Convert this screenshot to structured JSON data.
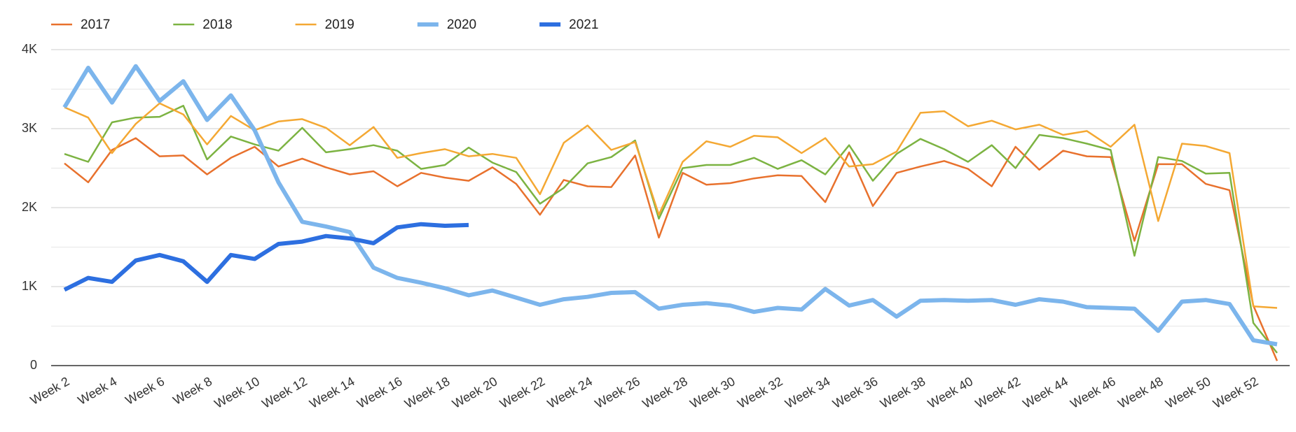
{
  "chart_data": {
    "type": "line",
    "categories": [
      "Week 2",
      null,
      "Week 4",
      null,
      "Week 6",
      null,
      "Week 8",
      null,
      "Week 10",
      null,
      "Week 12",
      null,
      "Week 14",
      null,
      "Week 16",
      null,
      "Week 18",
      null,
      "Week 20",
      null,
      "Week 22",
      null,
      "Week 24",
      null,
      "Week 26",
      null,
      "Week 28",
      null,
      "Week 30",
      null,
      "Week 32",
      null,
      "Week 34",
      null,
      "Week 36",
      null,
      "Week 38",
      null,
      "Week 40",
      null,
      "Week 42",
      null,
      "Week 44",
      null,
      "Week 46",
      null,
      "Week 48",
      null,
      "Week 50",
      null,
      "Week 52",
      null
    ],
    "series": [
      {
        "name": "2017",
        "color": "#e8712d",
        "line_width": 2.5,
        "values": [
          2560,
          2320,
          2730,
          2880,
          2650,
          2660,
          2420,
          2630,
          2770,
          2520,
          2620,
          2510,
          2420,
          2460,
          2270,
          2440,
          2380,
          2340,
          2510,
          2300,
          1910,
          2350,
          2270,
          2260,
          2660,
          1620,
          2440,
          2290,
          2310,
          2370,
          2410,
          2400,
          2070,
          2700,
          2020,
          2440,
          2520,
          2590,
          2490,
          2270,
          2770,
          2480,
          2720,
          2650,
          2640,
          1580,
          2550,
          2550,
          2300,
          2220,
          760,
          60
        ]
      },
      {
        "name": "2018",
        "color": "#7cb342",
        "line_width": 2.5,
        "values": [
          2680,
          2580,
          3080,
          3140,
          3150,
          3290,
          2610,
          2900,
          2800,
          2720,
          3010,
          2700,
          2740,
          2790,
          2720,
          2490,
          2540,
          2760,
          2570,
          2450,
          2050,
          2250,
          2560,
          2640,
          2850,
          1860,
          2500,
          2540,
          2540,
          2630,
          2490,
          2600,
          2420,
          2790,
          2340,
          2680,
          2870,
          2740,
          2580,
          2790,
          2500,
          2920,
          2880,
          2810,
          2730,
          1390,
          2640,
          2590,
          2430,
          2440,
          540,
          160
        ]
      },
      {
        "name": "2019",
        "color": "#f4a833",
        "line_width": 2.5,
        "values": [
          3270,
          3140,
          2690,
          3060,
          3320,
          3180,
          2800,
          3160,
          2980,
          3090,
          3120,
          3010,
          2790,
          3020,
          2630,
          2690,
          2740,
          2650,
          2680,
          2630,
          2170,
          2820,
          3040,
          2730,
          2830,
          1910,
          2580,
          2840,
          2770,
          2910,
          2890,
          2690,
          2880,
          2520,
          2550,
          2710,
          3200,
          3220,
          3030,
          3100,
          2990,
          3050,
          2920,
          2970,
          2770,
          3050,
          1830,
          2810,
          2780,
          2690,
          750,
          730
        ]
      },
      {
        "name": "2020",
        "color": "#7cb5ec",
        "line_width": 6,
        "values": [
          3270,
          3770,
          3330,
          3790,
          3350,
          3600,
          3110,
          3420,
          2980,
          2320,
          1820,
          1760,
          1690,
          1240,
          1110,
          1050,
          980,
          890,
          950,
          860,
          770,
          840,
          870,
          920,
          930,
          720,
          770,
          790,
          760,
          680,
          730,
          710,
          970,
          760,
          830,
          620,
          820,
          830,
          820,
          830,
          770,
          840,
          810,
          740,
          730,
          720,
          440,
          810,
          830,
          780,
          320,
          270
        ]
      },
      {
        "name": "2021",
        "color": "#2d6fe0",
        "line_width": 6,
        "values": [
          960,
          1110,
          1060,
          1330,
          1400,
          1320,
          1060,
          1400,
          1350,
          1540,
          1570,
          1640,
          1610,
          1550,
          1750,
          1790,
          1770,
          1780,
          null,
          null,
          null,
          null,
          null,
          null,
          null,
          null,
          null,
          null,
          null,
          null,
          null,
          null,
          null,
          null,
          null,
          null,
          null,
          null,
          null,
          null,
          null,
          null,
          null,
          null,
          null,
          null,
          null,
          null,
          null,
          null,
          null,
          null
        ]
      }
    ],
    "ylim": [
      0,
      4000
    ],
    "yticks": [
      0,
      {
        "value": 1000,
        "label": "1K"
      },
      {
        "value": 2000,
        "label": "2K"
      },
      {
        "value": 3000,
        "label": "3K"
      },
      {
        "value": 4000,
        "label": "4K"
      }
    ],
    "minor_yticks": [
      500,
      1500,
      2500,
      3500
    ],
    "grid": true,
    "legend": "top"
  }
}
